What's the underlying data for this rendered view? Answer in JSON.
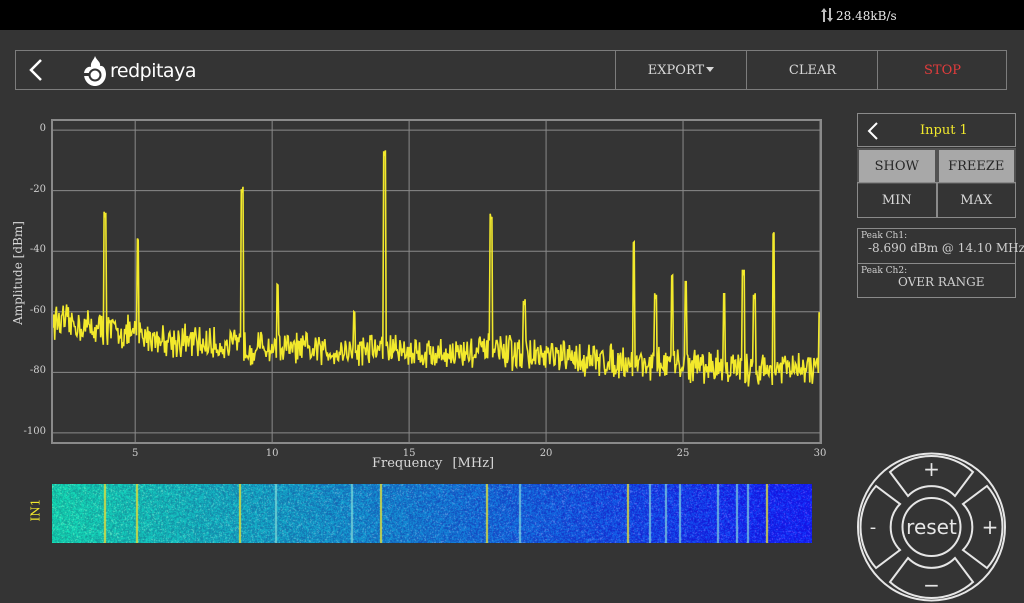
{
  "status_bar": {
    "network_speed": "28.48kB/s",
    "network_icon": "up-down-arrows-icon"
  },
  "header": {
    "back_icon": "chevron-left-icon",
    "logo_text": "redpitaya",
    "logo_icon": "flame-logo-icon",
    "export_label": "EXPORT",
    "export_caret": "caret-down-icon",
    "clear_label": "CLEAR",
    "stop_label": "STOP",
    "stop_color": "#e23c3c"
  },
  "chart_data": {
    "type": "line",
    "series": [
      {
        "name": "",
        "color": "#f2e92c",
        "noise_floor": [
          [
            2,
            -63
          ],
          [
            4,
            -66
          ],
          [
            6,
            -69
          ],
          [
            8,
            -71
          ],
          [
            10,
            -72
          ],
          [
            12,
            -73
          ],
          [
            14,
            -72
          ],
          [
            16,
            -74
          ],
          [
            18,
            -73
          ],
          [
            20,
            -75
          ],
          [
            22,
            -76
          ],
          [
            24,
            -77
          ],
          [
            26,
            -78
          ],
          [
            28,
            -79
          ],
          [
            30,
            -79
          ]
        ],
        "peaks": [
          [
            3.9,
            -29
          ],
          [
            5.1,
            -37
          ],
          [
            8.9,
            -21
          ],
          [
            10.2,
            -52
          ],
          [
            13.0,
            -61
          ],
          [
            14.1,
            -8.7
          ],
          [
            18.0,
            -30
          ],
          [
            19.2,
            -58
          ],
          [
            23.2,
            -38
          ],
          [
            24.0,
            -56
          ],
          [
            24.6,
            -49
          ],
          [
            25.1,
            -51
          ],
          [
            26.5,
            -55
          ],
          [
            27.2,
            -48
          ],
          [
            27.6,
            -56
          ],
          [
            28.3,
            -35
          ],
          [
            30.0,
            -62
          ]
        ]
      }
    ],
    "xlabel": "Frequency",
    "xunit": "[MHz]",
    "ylabel": "Amplitude",
    "yunit": "[dBm]",
    "xlim": [
      2,
      30
    ],
    "ylim": [
      -103,
      3
    ],
    "x_ticks": [
      "5",
      "10",
      "15",
      "20",
      "25",
      "30"
    ],
    "y_ticks": [
      "0",
      "-20",
      "-40",
      "-60",
      "-80",
      "-100"
    ],
    "grid": true,
    "grid_color": "#8a8a8a"
  },
  "waterfall": {
    "label": "IN1",
    "label_color": "#f2e92c"
  },
  "input_panel": {
    "back_icon": "chevron-left-icon",
    "title": "Input 1",
    "show_label": "SHOW",
    "freeze_label": "FREEZE",
    "min_label": "MIN",
    "max_label": "MAX"
  },
  "peaks": {
    "ch1_label": "Peak  Ch1:",
    "ch1_value": "-8.690  dBm @ 14.10  MHz",
    "ch2_label": "Peak  Ch2:",
    "ch2_value": "OVER RANGE"
  },
  "dpad": {
    "up": "+",
    "down": "−",
    "left": "-",
    "right": "+",
    "center": "reset"
  }
}
